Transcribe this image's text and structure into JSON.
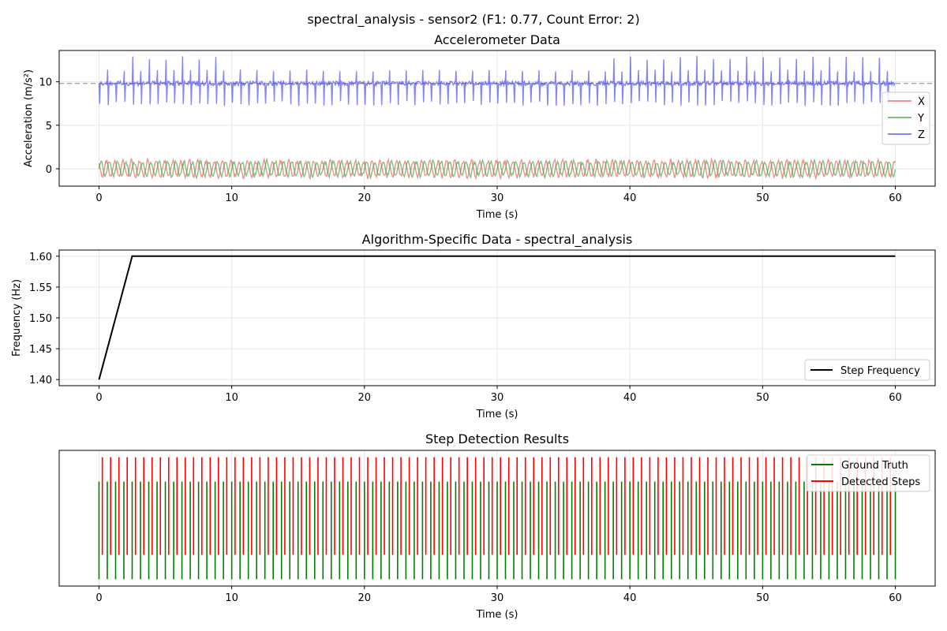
{
  "figure": {
    "suptitle": "spectral_analysis - sensor2 (F1: 0.77, Count Error: 2)"
  },
  "chart_data": [
    {
      "type": "line",
      "title": "Accelerometer Data",
      "xlabel": "Time (s)",
      "ylabel": "Acceleration (m/s²)",
      "xlim": [
        -3,
        63
      ],
      "ylim": [
        -2,
        13.6
      ],
      "xticks": [
        "0",
        "10",
        "20",
        "30",
        "40",
        "50",
        "60"
      ],
      "yticks": [
        "0",
        "5",
        "10"
      ],
      "grid": true,
      "legend_position": "right",
      "reference_line": {
        "y": 9.81,
        "style": "dashed",
        "color": "#aaaaaa"
      },
      "step_frequency_hz": 1.6,
      "series": [
        {
          "name": "X",
          "color": "#e8484880",
          "baseline": 0.0,
          "min": -1.1,
          "max": 0.6,
          "range": [
            0,
            60
          ]
        },
        {
          "name": "Y",
          "color": "#2a9a2a",
          "baseline": 0.0,
          "min": -0.6,
          "max": 1.0,
          "range": [
            0,
            60
          ]
        },
        {
          "name": "Z",
          "color": "#3333ee",
          "baseline": 9.81,
          "min": 7.2,
          "max": 13.0,
          "range": [
            0,
            60
          ]
        }
      ]
    },
    {
      "type": "line",
      "title": "Algorithm-Specific Data - spectral_analysis",
      "xlabel": "Time (s)",
      "ylabel": "Frequency (Hz)",
      "xlim": [
        -3,
        63
      ],
      "ylim": [
        1.39,
        1.61
      ],
      "xticks": [
        "0",
        "10",
        "20",
        "30",
        "40",
        "50",
        "60"
      ],
      "yticks": [
        "1.40",
        "1.45",
        "1.50",
        "1.55",
        "1.60"
      ],
      "grid": true,
      "legend_position": "lower right",
      "series": [
        {
          "name": "Step Frequency",
          "color": "#000000",
          "x": [
            0,
            2.5,
            60
          ],
          "y": [
            1.4,
            1.6,
            1.6
          ]
        }
      ]
    },
    {
      "type": "event",
      "title": "Step Detection Results",
      "xlabel": "Time (s)",
      "xlim": [
        -3,
        63
      ],
      "xticks": [
        "0",
        "10",
        "20",
        "30",
        "40",
        "50",
        "60"
      ],
      "grid": true,
      "legend_position": "upper right",
      "series": [
        {
          "name": "Ground Truth",
          "color": "#008000",
          "interval_s": 0.625,
          "start": 0.0,
          "end": 60.0,
          "ymin": 0.05,
          "ymax": 0.77
        },
        {
          "name": "Detected Steps",
          "color": "#ff0000",
          "interval_s": 0.625,
          "start": 0.25,
          "end": 59.9,
          "ymin": 0.23,
          "ymax": 0.95
        }
      ]
    }
  ]
}
